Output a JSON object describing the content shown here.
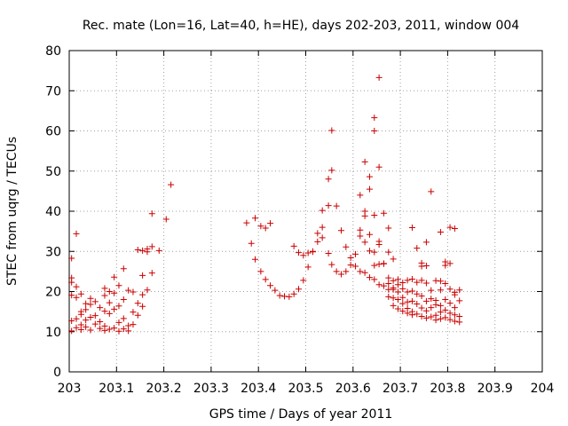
{
  "chart_data": {
    "type": "scatter",
    "title": "Rec. mate (Lon=16, Lat=40, h=HE), days 202-203, 2011, window 004",
    "xlabel": "GPS time / Days of year 2011",
    "ylabel": "STEC from uqrg / TECUs",
    "xlim": [
      203,
      204
    ],
    "ylim": [
      0,
      80
    ],
    "grid": true,
    "marker": "+",
    "marker_color": "#cc0000",
    "x_ticks": [
      203,
      203.1,
      203.2,
      203.3,
      203.4,
      203.5,
      203.6,
      203.7,
      203.8,
      203.9,
      204
    ],
    "x_tick_labels": [
      "203",
      "203.1",
      "203.2",
      "203.3",
      "203.4",
      "203.5",
      "203.6",
      "203.7",
      "203.8",
      "203.9",
      "204"
    ],
    "y_ticks": [
      0,
      10,
      20,
      30,
      40,
      50,
      60,
      70,
      80
    ],
    "y_tick_labels": [
      "0",
      "10",
      "20",
      "30",
      "40",
      "50",
      "60",
      "70",
      "80"
    ],
    "points": [
      [
        203.005,
        28.3
      ],
      [
        203.005,
        23.4
      ],
      [
        203.005,
        22.3
      ],
      [
        203.005,
        19.1
      ],
      [
        203.005,
        12.7
      ],
      [
        203.005,
        10.2
      ],
      [
        203.015,
        34.4
      ],
      [
        203.015,
        21.2
      ],
      [
        203.015,
        18.5
      ],
      [
        203.015,
        13.2
      ],
      [
        203.015,
        11.0
      ],
      [
        203.025,
        19.4
      ],
      [
        203.025,
        15.0
      ],
      [
        203.025,
        14.3
      ],
      [
        203.025,
        11.7
      ],
      [
        203.025,
        10.5
      ],
      [
        203.035,
        17.0
      ],
      [
        203.035,
        15.5
      ],
      [
        203.035,
        12.9
      ],
      [
        203.035,
        11.2
      ],
      [
        203.045,
        18.3
      ],
      [
        203.045,
        16.8
      ],
      [
        203.045,
        13.6
      ],
      [
        203.045,
        10.4
      ],
      [
        203.055,
        17.5
      ],
      [
        203.055,
        14.0
      ],
      [
        203.055,
        11.9
      ],
      [
        203.065,
        16.0
      ],
      [
        203.065,
        12.5
      ],
      [
        203.065,
        10.8
      ],
      [
        203.075,
        20.8
      ],
      [
        203.075,
        19.0
      ],
      [
        203.075,
        15.1
      ],
      [
        203.075,
        11.4
      ],
      [
        203.075,
        10.3
      ],
      [
        203.085,
        20.0
      ],
      [
        203.085,
        17.2
      ],
      [
        203.085,
        14.5
      ],
      [
        203.085,
        10.6
      ],
      [
        203.095,
        23.6
      ],
      [
        203.095,
        19.6
      ],
      [
        203.095,
        15.6
      ],
      [
        203.095,
        10.9
      ],
      [
        203.105,
        21.5
      ],
      [
        203.105,
        16.4
      ],
      [
        203.105,
        12.3
      ],
      [
        203.105,
        10.1
      ],
      [
        203.115,
        25.7
      ],
      [
        203.115,
        18.0
      ],
      [
        203.115,
        13.3
      ],
      [
        203.115,
        10.7
      ],
      [
        203.125,
        20.3
      ],
      [
        203.125,
        11.5
      ],
      [
        203.125,
        10.2
      ],
      [
        203.135,
        19.9
      ],
      [
        203.135,
        14.9
      ],
      [
        203.135,
        11.8
      ],
      [
        203.145,
        30.4
      ],
      [
        203.145,
        17.1
      ],
      [
        203.145,
        14.1
      ],
      [
        203.155,
        30.2
      ],
      [
        203.155,
        24.0
      ],
      [
        203.155,
        19.2
      ],
      [
        203.155,
        16.3
      ],
      [
        203.165,
        30.6
      ],
      [
        203.165,
        29.9
      ],
      [
        203.165,
        20.4
      ],
      [
        203.175,
        31.2
      ],
      [
        203.175,
        24.6
      ],
      [
        203.175,
        39.4
      ],
      [
        203.19,
        30.2
      ],
      [
        203.205,
        38.0
      ],
      [
        203.215,
        46.6
      ],
      [
        203.375,
        37.1
      ],
      [
        203.385,
        32.0
      ],
      [
        203.393,
        38.3
      ],
      [
        203.393,
        28.0
      ],
      [
        203.405,
        36.3
      ],
      [
        203.405,
        25.0
      ],
      [
        203.415,
        35.8
      ],
      [
        203.415,
        23.0
      ],
      [
        203.425,
        37.0
      ],
      [
        203.425,
        21.5
      ],
      [
        203.435,
        20.3
      ],
      [
        203.445,
        19.0
      ],
      [
        203.455,
        18.8
      ],
      [
        203.465,
        18.7
      ],
      [
        203.475,
        19.4
      ],
      [
        203.475,
        31.3
      ],
      [
        203.485,
        20.6
      ],
      [
        203.485,
        29.7
      ],
      [
        203.495,
        22.8
      ],
      [
        203.495,
        29.0
      ],
      [
        203.505,
        26.1
      ],
      [
        203.505,
        29.6
      ],
      [
        203.515,
        29.9
      ],
      [
        203.515,
        30.0
      ],
      [
        203.525,
        32.4
      ],
      [
        203.525,
        34.5
      ],
      [
        203.535,
        36.0
      ],
      [
        203.535,
        40.2
      ],
      [
        203.535,
        33.4
      ],
      [
        203.548,
        48.0
      ],
      [
        203.548,
        41.4
      ],
      [
        203.548,
        29.5
      ],
      [
        203.555,
        60.1
      ],
      [
        203.555,
        50.2
      ],
      [
        203.555,
        26.7
      ],
      [
        203.565,
        41.3
      ],
      [
        203.565,
        25.0
      ],
      [
        203.575,
        35.2
      ],
      [
        203.575,
        24.3
      ],
      [
        203.585,
        31.1
      ],
      [
        203.585,
        25.0
      ],
      [
        203.595,
        28.4
      ],
      [
        203.595,
        26.6
      ],
      [
        203.605,
        29.3
      ],
      [
        203.605,
        26.3
      ],
      [
        203.615,
        44.0
      ],
      [
        203.615,
        35.3
      ],
      [
        203.615,
        33.8
      ],
      [
        203.615,
        25.0
      ],
      [
        203.625,
        52.3
      ],
      [
        203.625,
        40.0
      ],
      [
        203.625,
        38.8
      ],
      [
        203.625,
        32.3
      ],
      [
        203.625,
        24.7
      ],
      [
        203.635,
        48.6
      ],
      [
        203.635,
        45.5
      ],
      [
        203.635,
        34.2
      ],
      [
        203.635,
        30.1
      ],
      [
        203.635,
        23.5
      ],
      [
        203.645,
        63.3
      ],
      [
        203.645,
        60.0
      ],
      [
        203.645,
        39.0
      ],
      [
        203.645,
        29.8
      ],
      [
        203.645,
        26.5
      ],
      [
        203.645,
        23.0
      ],
      [
        203.655,
        73.3
      ],
      [
        203.655,
        51.0
      ],
      [
        203.655,
        32.5
      ],
      [
        203.655,
        31.7
      ],
      [
        203.655,
        26.8
      ],
      [
        203.655,
        21.7
      ],
      [
        203.665,
        39.5
      ],
      [
        203.665,
        27.0
      ],
      [
        203.665,
        26.9
      ],
      [
        203.665,
        21.4
      ],
      [
        203.675,
        35.8
      ],
      [
        203.675,
        29.8
      ],
      [
        203.675,
        23.4
      ],
      [
        203.675,
        22.0
      ],
      [
        203.675,
        20.5
      ],
      [
        203.675,
        18.7
      ],
      [
        203.685,
        28.1
      ],
      [
        203.685,
        22.7
      ],
      [
        203.685,
        20.9
      ],
      [
        203.685,
        20.5
      ],
      [
        203.685,
        18.4
      ],
      [
        203.685,
        16.5
      ],
      [
        203.695,
        23.0
      ],
      [
        203.695,
        21.7
      ],
      [
        203.695,
        19.9
      ],
      [
        203.695,
        18.0
      ],
      [
        203.695,
        15.7
      ],
      [
        203.705,
        22.2
      ],
      [
        203.705,
        20.7
      ],
      [
        203.705,
        18.5
      ],
      [
        203.705,
        17.0
      ],
      [
        203.705,
        15.1
      ],
      [
        203.715,
        22.8
      ],
      [
        203.715,
        19.9
      ],
      [
        203.715,
        17.4
      ],
      [
        203.715,
        15.8
      ],
      [
        203.715,
        14.6
      ],
      [
        203.725,
        35.9
      ],
      [
        203.725,
        23.1
      ],
      [
        203.725,
        20.1
      ],
      [
        203.725,
        17.6
      ],
      [
        203.725,
        15.0
      ],
      [
        203.725,
        14.2
      ],
      [
        203.735,
        30.8
      ],
      [
        203.735,
        22.3
      ],
      [
        203.735,
        19.4
      ],
      [
        203.735,
        16.9
      ],
      [
        203.735,
        14.4
      ],
      [
        203.745,
        27.1
      ],
      [
        203.745,
        26.3
      ],
      [
        203.745,
        22.8
      ],
      [
        203.745,
        18.9
      ],
      [
        203.745,
        15.9
      ],
      [
        203.745,
        13.8
      ],
      [
        203.755,
        32.3
      ],
      [
        203.755,
        26.4
      ],
      [
        203.755,
        22.1
      ],
      [
        203.755,
        17.6
      ],
      [
        203.755,
        15.2
      ],
      [
        203.755,
        13.4
      ],
      [
        203.765,
        44.9
      ],
      [
        203.765,
        20.3
      ],
      [
        203.765,
        18.2
      ],
      [
        203.765,
        16.0
      ],
      [
        203.765,
        13.7
      ],
      [
        203.775,
        22.7
      ],
      [
        203.775,
        17.8
      ],
      [
        203.775,
        16.7
      ],
      [
        203.775,
        14.1
      ],
      [
        203.775,
        12.9
      ],
      [
        203.785,
        34.8
      ],
      [
        203.785,
        22.6
      ],
      [
        203.785,
        20.4
      ],
      [
        203.785,
        16.5
      ],
      [
        203.785,
        14.9
      ],
      [
        203.785,
        13.2
      ],
      [
        203.795,
        27.4
      ],
      [
        203.795,
        26.5
      ],
      [
        203.795,
        22.0
      ],
      [
        203.795,
        18.0
      ],
      [
        203.795,
        15.4
      ],
      [
        203.795,
        13.5
      ],
      [
        203.805,
        36.0
      ],
      [
        203.805,
        27.0
      ],
      [
        203.805,
        20.6
      ],
      [
        203.805,
        17.1
      ],
      [
        203.805,
        14.6
      ],
      [
        203.805,
        13.0
      ],
      [
        203.815,
        35.7
      ],
      [
        203.815,
        19.8
      ],
      [
        203.815,
        19.2
      ],
      [
        203.815,
        16.0
      ],
      [
        203.815,
        14.2
      ],
      [
        203.815,
        12.6
      ],
      [
        203.825,
        20.4
      ],
      [
        203.825,
        17.7
      ],
      [
        203.825,
        13.8
      ],
      [
        203.825,
        12.4
      ]
    ]
  }
}
